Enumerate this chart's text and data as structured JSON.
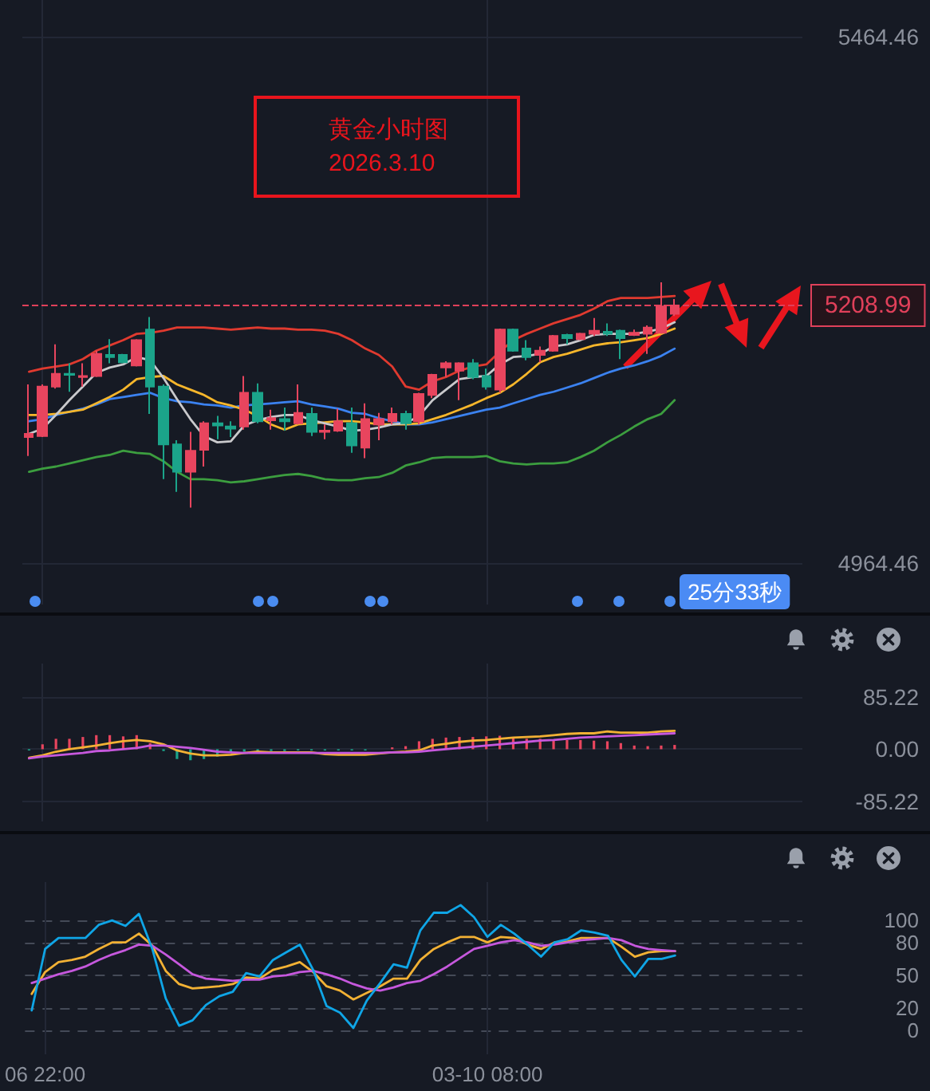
{
  "chart_data": [
    {
      "type": "candlestick",
      "title": "黄金小时图",
      "subtitle": "2026.3.10",
      "annotations": [
        "25分33秒"
      ],
      "categories": [
        null,
        null,
        null,
        null,
        null,
        null,
        null,
        null,
        null,
        null,
        null,
        null,
        null,
        null,
        null,
        null,
        null,
        null,
        null,
        null,
        null,
        null,
        null,
        null,
        null,
        null,
        null,
        null,
        null,
        null,
        null,
        null,
        null,
        null,
        null,
        null,
        null,
        null,
        null,
        null,
        null,
        null,
        null,
        null,
        null,
        null,
        null,
        null,
        null
      ],
      "ohlc": [
        [
          5084,
          5134,
          5066,
          5087
        ],
        [
          5085,
          5134,
          5084,
          5132
        ],
        [
          5132,
          5172,
          5130,
          5144
        ],
        [
          5144,
          5154,
          5127,
          5143
        ],
        [
          5141,
          5154,
          5132,
          5142
        ],
        [
          5142,
          5166,
          5141,
          5163
        ],
        [
          5162,
          5177,
          5154,
          5160
        ],
        [
          5162,
          5163,
          5154,
          5155
        ],
        [
          5152,
          5177,
          5151,
          5176
        ],
        [
          5186,
          5198,
          5106,
          5132
        ],
        [
          5132,
          5134,
          5044,
          5077
        ],
        [
          5077,
          5081,
          5032,
          5051
        ],
        [
          5051,
          5089,
          5017,
          5071
        ],
        [
          5072,
          5099,
          5056,
          5097
        ],
        [
          5097,
          5104,
          5082,
          5095
        ],
        [
          5094,
          5099,
          5084,
          5092
        ],
        [
          5094,
          5142,
          5091,
          5126
        ],
        [
          5126,
          5135,
          5097,
          5099
        ],
        [
          5100,
          5110,
          5091,
          5102
        ],
        [
          5101,
          5112,
          5090,
          5099
        ],
        [
          5097,
          5134,
          5096,
          5107
        ],
        [
          5106,
          5112,
          5085,
          5089
        ],
        [
          5089,
          5096,
          5082,
          5090
        ],
        [
          5090,
          5111,
          5089,
          5099
        ],
        [
          5097,
          5112,
          5069,
          5076
        ],
        [
          5074,
          5116,
          5064,
          5101
        ],
        [
          5096,
          5107,
          5081,
          5101
        ],
        [
          5099,
          5112,
          5096,
          5106
        ],
        [
          5106,
          5109,
          5091,
          5097
        ],
        [
          5099,
          5126,
          5096,
          5125
        ],
        [
          5124,
          5144,
          5121,
          5143
        ],
        [
          5150,
          5156,
          5141,
          5154
        ],
        [
          5147,
          5155,
          5119,
          5154
        ],
        [
          5154,
          5158,
          5139,
          5141
        ],
        [
          5142,
          5149,
          5129,
          5132
        ],
        [
          5129,
          5187,
          5126,
          5186
        ],
        [
          5186,
          5187,
          5165,
          5166
        ],
        [
          5168,
          5176,
          5157,
          5160
        ],
        [
          5162,
          5170,
          5155,
          5166
        ],
        [
          5166,
          5181,
          5165,
          5180
        ],
        [
          5181,
          5182,
          5172,
          5178
        ],
        [
          5177,
          5183,
          5176,
          5182
        ],
        [
          5182,
          5197,
          5180,
          5185
        ],
        [
          5184,
          5192,
          5180,
          5182
        ],
        [
          5185,
          5186,
          5158,
          5178
        ],
        [
          5181,
          5186,
          5180,
          5183
        ],
        [
          5182,
          5190,
          5163,
          5188
        ],
        [
          5183,
          5231,
          5182,
          5208
        ],
        [
          5201,
          5215,
          5199,
          5208.99
        ]
      ],
      "colors": [
        "#e8455e",
        "#e8455e",
        "#e8455e",
        "#1ba48a",
        "#e8455e",
        "#e8455e",
        "#1ba48a",
        "#1ba48a",
        "#e8455e",
        "#1ba48a",
        "#1ba48a",
        "#1ba48a",
        "#e8455e",
        "#e8455e",
        "#1ba48a",
        "#1ba48a",
        "#e8455e",
        "#1ba48a",
        "#e8455e",
        "#1ba48a",
        "#e8455e",
        "#1ba48a",
        "#e8455e",
        "#e8455e",
        "#1ba48a",
        "#e8455e",
        "#e8455e",
        "#e8455e",
        "#1ba48a",
        "#e8455e",
        "#e8455e",
        "#e8455e",
        "#e8455e",
        "#1ba48a",
        "#1ba48a",
        "#e8455e",
        "#1ba48a",
        "#1ba48a",
        "#e8455e",
        "#e8455e",
        "#1ba48a",
        "#e8455e",
        "#e8455e",
        "#1ba48a",
        "#1ba48a",
        "#e8455e",
        "#e8455e",
        "#e8455e",
        "#e8455e"
      ],
      "series": [
        {
          "type": "line",
          "color": "#e03a2f",
          "values": [
            5146,
            5149,
            5151,
            5153,
            5158,
            5166,
            5171,
            5176,
            5182,
            5183,
            5185,
            5188,
            5188,
            5188,
            5187,
            5186,
            5187,
            5188,
            5187,
            5187,
            5186,
            5186,
            5185,
            5182,
            5176,
            5168,
            5162,
            5151,
            5132,
            5129,
            5137,
            5141,
            5147,
            5151,
            5153,
            5165,
            5176,
            5182,
            5187,
            5192,
            5196,
            5200,
            5206,
            5213,
            5216,
            5216,
            5216,
            5217,
            5218
          ]
        },
        {
          "type": "line",
          "color": "#3c9e3f",
          "values": [
            5051,
            5054,
            5056,
            5059,
            5062,
            5065,
            5067,
            5071,
            5069,
            5068,
            5061,
            5051,
            5044,
            5044,
            5043,
            5041,
            5042,
            5044,
            5046,
            5048,
            5049,
            5047,
            5044,
            5043,
            5043,
            5045,
            5046,
            5050,
            5057,
            5060,
            5064,
            5065,
            5065,
            5065,
            5066,
            5061,
            5059,
            5058,
            5059,
            5059,
            5060,
            5065,
            5071,
            5079,
            5086,
            5094,
            5101,
            5106,
            5119
          ]
        },
        {
          "type": "line",
          "color": "#3b82f0",
          "values": [
            5099,
            5101,
            5105,
            5108,
            5111,
            5115,
            5120,
            5122,
            5124,
            5126,
            5121,
            5118,
            5117,
            5115,
            5114,
            5112,
            5114,
            5115,
            5116,
            5117,
            5118,
            5115,
            5113,
            5111,
            5107,
            5106,
            5102,
            5099,
            5096,
            5096,
            5098,
            5101,
            5104,
            5107,
            5110,
            5112,
            5116,
            5120,
            5124,
            5127,
            5131,
            5135,
            5140,
            5145,
            5149,
            5152,
            5156,
            5161,
            5168
          ]
        },
        {
          "type": "line",
          "color": "#f6b62b",
          "values": [
            5105,
            5105,
            5106,
            5108,
            5110,
            5116,
            5122,
            5129,
            5139,
            5141,
            5142,
            5134,
            5129,
            5124,
            5117,
            5114,
            5110,
            5104,
            5096,
            5091,
            5096,
            5097,
            5098,
            5099,
            5099,
            5098,
            5096,
            5096,
            5096,
            5097,
            5101,
            5105,
            5110,
            5115,
            5121,
            5126,
            5134,
            5144,
            5155,
            5160,
            5163,
            5167,
            5171,
            5173,
            5174,
            5176,
            5178,
            5182,
            5187
          ]
        },
        {
          "type": "line",
          "color": "#c9c9cc",
          "values": [
            5087,
            5092,
            5105,
            5119,
            5132,
            5145,
            5150,
            5153,
            5160,
            5157,
            5140,
            5120,
            5101,
            5085,
            5079,
            5080,
            5095,
            5100,
            5103,
            5105,
            5105,
            5100,
            5097,
            5094,
            5090,
            5091,
            5093,
            5096,
            5097,
            5104,
            5119,
            5129,
            5139,
            5141,
            5142,
            5153,
            5160,
            5161,
            5163,
            5170,
            5172,
            5176,
            5181,
            5182,
            5182,
            5182,
            5184,
            5187,
            5193
          ]
        }
      ],
      "ylim": [
        4925,
        5499
      ],
      "yticks": [
        4964.46,
        5464.46
      ],
      "ref_lines": [
        {
          "axis": "y",
          "value": 5208.99,
          "label": "5208.99",
          "color": "#e0405a",
          "line_style": "dashed"
        }
      ],
      "grid": true,
      "marker": "none"
    },
    {
      "type": "bar",
      "categories": [
        null,
        null,
        null,
        null,
        null,
        null,
        null,
        null,
        null,
        null,
        null,
        null,
        null,
        null,
        null,
        null,
        null,
        null,
        null,
        null,
        null,
        null,
        null,
        null,
        null,
        null,
        null,
        null,
        null,
        null,
        null,
        null,
        null,
        null,
        null,
        null,
        null,
        null,
        null,
        null,
        null,
        null,
        null,
        null,
        null,
        null,
        null,
        null,
        null
      ],
      "series": [
        {
          "values": [
            -2,
            8,
            17,
            17,
            20,
            23,
            23,
            21,
            23,
            10,
            -3,
            -16,
            -18,
            -16,
            -12,
            -6,
            -4,
            -4,
            -3,
            -3,
            -2,
            -2,
            -2,
            -2,
            -2,
            -2,
            0,
            3,
            5,
            13,
            17,
            19,
            20,
            20,
            21,
            22,
            20,
            17,
            17,
            15,
            15,
            15,
            14,
            13,
            10,
            6,
            5,
            6,
            7
          ],
          "colors": [
            "#1ba48a",
            "#e8455e",
            "#e8455e",
            "#e8455e",
            "#e8455e",
            "#e8455e",
            "#e8455e",
            "#e8455e",
            "#e8455e",
            "#e8455e",
            "#1ba48a",
            "#1ba48a",
            "#1ba48a",
            "#1ba48a",
            "#1ba48a",
            "#1ba48a",
            "#1ba48a",
            "#1ba48a",
            "#1ba48a",
            "#1ba48a",
            "#1ba48a",
            "#1ba48a",
            "#1ba48a",
            "#1ba48a",
            "#1ba48a",
            "#1ba48a",
            "#1ba48a",
            "#e8455e",
            "#e8455e",
            "#e8455e",
            "#e8455e",
            "#e8455e",
            "#e8455e",
            "#e8455e",
            "#e8455e",
            "#e8455e",
            "#e8455e",
            "#e8455e",
            "#e8455e",
            "#e8455e",
            "#e8455e",
            "#e8455e",
            "#e8455e",
            "#e8455e",
            "#e8455e",
            "#e8455e",
            "#e8455e",
            "#e8455e",
            "#e8455e"
          ]
        },
        {
          "type": "line",
          "color": "#f2b134",
          "values": [
            -14,
            -10,
            -4,
            0,
            3,
            6,
            10,
            13,
            15,
            13,
            8,
            -2,
            -7,
            -10,
            -10,
            -9,
            -6,
            -4,
            -5,
            -5,
            -5,
            -5,
            -8,
            -9,
            -9,
            -9,
            -7,
            -5,
            -4,
            -2,
            6,
            9,
            12,
            14,
            15,
            17,
            19,
            20,
            21,
            23,
            25,
            26,
            26,
            29,
            27,
            27,
            27,
            29,
            30
          ]
        },
        {
          "type": "line",
          "color": "#c658dd",
          "values": [
            -15,
            -12,
            -10,
            -8,
            -6,
            -3,
            -2,
            0,
            2,
            6,
            6,
            4,
            2,
            -1,
            -4,
            -5,
            -6,
            -6,
            -6,
            -6,
            -6,
            -6,
            -6,
            -6,
            -6,
            -6,
            -6,
            -5,
            -5,
            -4,
            -2,
            0,
            2,
            4,
            6,
            8,
            10,
            12,
            14,
            15,
            17,
            19,
            20,
            21,
            22,
            23,
            24,
            25,
            26
          ]
        }
      ],
      "ylim": [
        -118,
        140
      ],
      "yticks": [
        -85.22,
        {
          "value": 0,
          "label": "0.00"
        },
        85.22
      ],
      "grid": true,
      "marker": "none"
    },
    {
      "type": "line",
      "categories": [
        null,
        "06 22:00",
        null,
        null,
        null,
        null,
        null,
        null,
        null,
        null,
        null,
        null,
        null,
        null,
        null,
        null,
        null,
        null,
        null,
        null,
        null,
        null,
        null,
        null,
        null,
        null,
        null,
        null,
        null,
        null,
        null,
        null,
        null,
        null,
        "03-10 08:00",
        null,
        null,
        null,
        null,
        null,
        null,
        null,
        null,
        null,
        null,
        null,
        null,
        null,
        null
      ],
      "series": [
        {
          "color": "#f2b134",
          "values": [
            33,
            53,
            62,
            64,
            67,
            74,
            80,
            80,
            88,
            77,
            54,
            42,
            38,
            39,
            40,
            42,
            48,
            47,
            55,
            58,
            62,
            53,
            40,
            36,
            28,
            34,
            40,
            47,
            47,
            64,
            74,
            80,
            85,
            85,
            80,
            85,
            84,
            78,
            74,
            80,
            81,
            84,
            84,
            84,
            76,
            67,
            71,
            72,
            72
          ]
        },
        {
          "color": "#c658dd",
          "values": [
            43,
            47,
            51,
            54,
            58,
            64,
            69,
            73,
            78,
            77,
            69,
            60,
            51,
            47,
            46,
            45,
            46,
            46,
            49,
            50,
            53,
            54,
            51,
            47,
            42,
            38,
            36,
            39,
            43,
            45,
            51,
            58,
            66,
            74,
            77,
            80,
            82,
            80,
            77,
            78,
            80,
            82,
            83,
            84,
            82,
            77,
            74,
            73,
            72
          ]
        },
        {
          "color": "#0fa5e6",
          "values": [
            18,
            74,
            84,
            84,
            84,
            96,
            100,
            95,
            106,
            74,
            29,
            4,
            9,
            23,
            31,
            35,
            52,
            49,
            64,
            71,
            78,
            55,
            22,
            16,
            2,
            27,
            43,
            60,
            57,
            91,
            107,
            107,
            114,
            103,
            85,
            96,
            88,
            78,
            67,
            80,
            83,
            91,
            89,
            86,
            64,
            49,
            65,
            65,
            68
          ]
        }
      ],
      "ylim": [
        -22,
        135
      ],
      "yticks": [
        0,
        20,
        50,
        80,
        100
      ],
      "grid": true,
      "marker": "none"
    }
  ]
}
